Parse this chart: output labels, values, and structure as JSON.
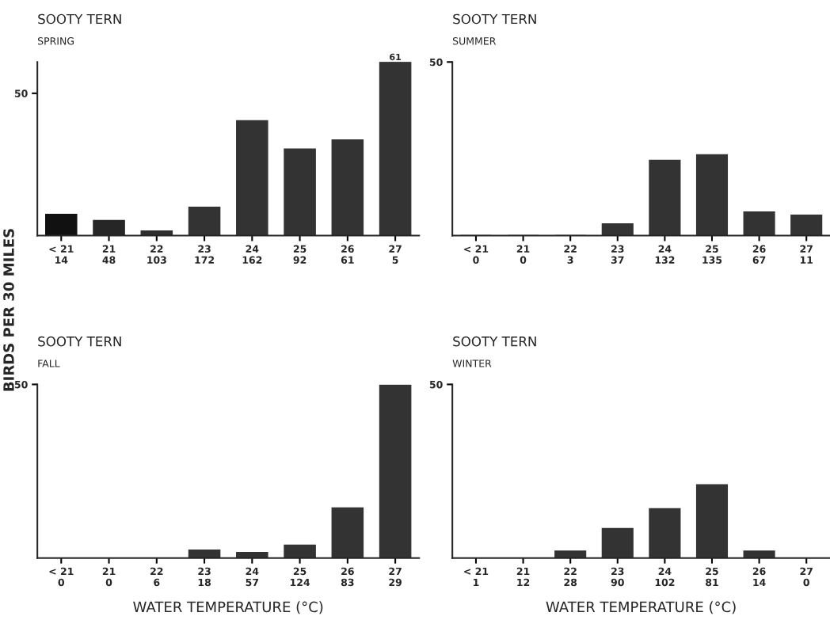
{
  "chart_data": [
    {
      "type": "bar",
      "title": "SOOTY TERN",
      "subtitle": "SPRING",
      "ylabel": "BIRDS PER 30 MILES",
      "categories": [
        "< 21\n14",
        "21\n48",
        "22\n103",
        "23\n172",
        "24\n162",
        "25\n92",
        "26\n61",
        "27\n5"
      ],
      "values": [
        7.5,
        5.3,
        1.6,
        10,
        40.4,
        30.4,
        33.6,
        61
      ],
      "colors": [
        "#111111",
        "#262626",
        "#2e2e2e",
        "#333333",
        "#333333",
        "#333333",
        "#333333",
        "#333333"
      ],
      "value_labels": [
        null,
        null,
        null,
        null,
        null,
        null,
        null,
        "61"
      ],
      "ylim": [
        0,
        61
      ],
      "yticks": [
        50
      ],
      "grid": false
    },
    {
      "type": "bar",
      "title": "SOOTY TERN",
      "subtitle": "SUMMER",
      "categories": [
        "< 21\n0",
        "21\n0",
        "22\n3",
        "23\n37",
        "24\n132",
        "25\n135",
        "26\n67",
        "27\n11"
      ],
      "values": [
        0,
        0,
        0,
        3.4,
        21.7,
        23.3,
        6.8,
        5.9
      ],
      "color": "#333333",
      "ylim": [
        0,
        50
      ],
      "yticks": [
        50
      ],
      "grid": false
    },
    {
      "type": "bar",
      "title": "SOOTY TERN",
      "subtitle": "FALL",
      "xlabel": "WATER TEMPERATURE (°C)",
      "categories": [
        "< 21\n0",
        "21\n0",
        "22\n6",
        "23\n18",
        "24\n57",
        "25\n124",
        "26\n83",
        "27\n29"
      ],
      "values": [
        0,
        0,
        0,
        2.3,
        1.6,
        3.7,
        14.4,
        49.8
      ],
      "color": "#333333",
      "ylim": [
        0,
        50
      ],
      "yticks": [
        50
      ],
      "grid": false
    },
    {
      "type": "bar",
      "title": "SOOTY TERN",
      "subtitle": "WINTER",
      "xlabel": "WATER TEMPERATURE (°C)",
      "categories": [
        "< 21\n1",
        "21\n12",
        "22\n28",
        "23\n90",
        "24\n102",
        "25\n81",
        "26\n14",
        "27\n0"
      ],
      "values": [
        0,
        0,
        2,
        8.5,
        14.2,
        21.1,
        2,
        0
      ],
      "color": "#333333",
      "ylim": [
        0,
        50
      ],
      "yticks": [
        50
      ],
      "grid": false
    }
  ]
}
